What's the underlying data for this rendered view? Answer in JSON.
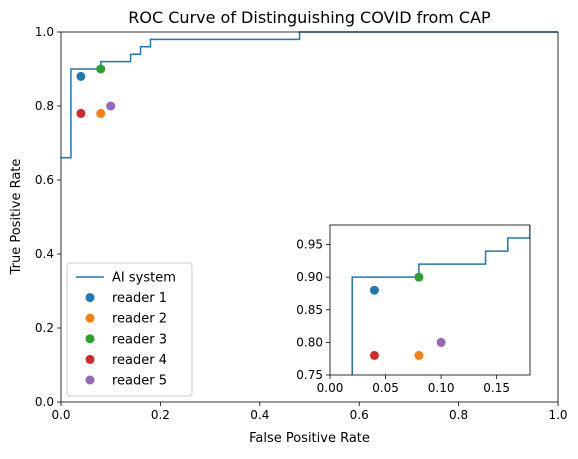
{
  "chart_data": {
    "type": "line",
    "title": "ROC Curve of Distinguishing COVID from CAP",
    "xlabel": "False Positive Rate",
    "ylabel": "True Positive Rate",
    "xlim": [
      0,
      1
    ],
    "ylim": [
      0,
      1
    ],
    "x_ticks": [
      "0.0",
      "0.2",
      "0.4",
      "0.6",
      "0.8",
      "1.0"
    ],
    "y_ticks": [
      "0.0",
      "0.2",
      "0.4",
      "0.6",
      "0.8",
      "1.0"
    ],
    "grid": false,
    "legend_position": "lower-left",
    "series": [
      {
        "name": "AI system",
        "kind": "step-line",
        "color": "#1f77b4",
        "points": [
          [
            0.0,
            0.66
          ],
          [
            0.02,
            0.66
          ],
          [
            0.02,
            0.9
          ],
          [
            0.08,
            0.9
          ],
          [
            0.08,
            0.92
          ],
          [
            0.14,
            0.92
          ],
          [
            0.14,
            0.94
          ],
          [
            0.16,
            0.94
          ],
          [
            0.16,
            0.96
          ],
          [
            0.18,
            0.96
          ],
          [
            0.18,
            0.98
          ],
          [
            0.48,
            0.98
          ],
          [
            0.48,
            1.0
          ],
          [
            1.0,
            1.0
          ]
        ]
      },
      {
        "name": "reader 1",
        "kind": "point",
        "color": "#1f77b4",
        "x": 0.04,
        "y": 0.88
      },
      {
        "name": "reader 2",
        "kind": "point",
        "color": "#ff7f0e",
        "x": 0.08,
        "y": 0.78
      },
      {
        "name": "reader 3",
        "kind": "point",
        "color": "#2ca02c",
        "x": 0.08,
        "y": 0.9
      },
      {
        "name": "reader 4",
        "kind": "point",
        "color": "#d62728",
        "x": 0.04,
        "y": 0.78
      },
      {
        "name": "reader 5",
        "kind": "point",
        "color": "#9467bd",
        "x": 0.1,
        "y": 0.8
      }
    ],
    "inset": {
      "xlim": [
        0,
        0.18
      ],
      "ylim": [
        0.75,
        0.98
      ],
      "x_ticks": [
        {
          "value": 0.0,
          "label": "0.00"
        },
        {
          "value": 0.05,
          "label": "0.05"
        },
        {
          "value": 0.1,
          "label": "0.10"
        },
        {
          "value": 0.15,
          "label": "0.15"
        }
      ],
      "y_ticks": [
        {
          "value": 0.75,
          "label": "0.75"
        },
        {
          "value": 0.8,
          "label": "0.80"
        },
        {
          "value": 0.85,
          "label": "0.85"
        },
        {
          "value": 0.9,
          "label": "0.90"
        },
        {
          "value": 0.95,
          "label": "0.95"
        }
      ]
    }
  }
}
